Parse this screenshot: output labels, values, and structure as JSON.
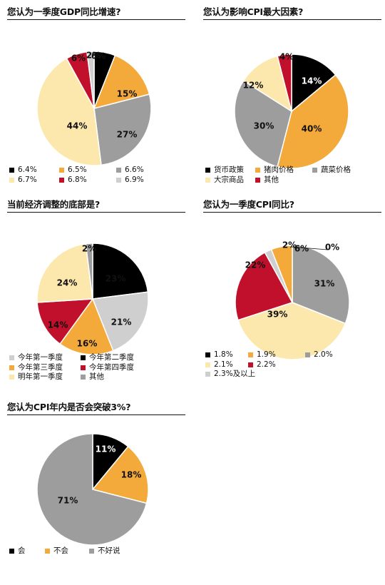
{
  "colors": {
    "black": "#000000",
    "orange": "#f4a93b",
    "gray": "#9d9d9d",
    "lightyellow": "#fce8ad",
    "red": "#c0102b",
    "lightgray": "#cfcfcf"
  },
  "chart_data": [
    {
      "type": "pie",
      "title": "您认为一季度GDP同比增速?",
      "slices": [
        {
          "label": "6.4%",
          "value": 6,
          "display": "6%",
          "color": "black"
        },
        {
          "label": "6.5%",
          "value": 15,
          "display": "15%",
          "color": "orange"
        },
        {
          "label": "6.6%",
          "value": 27,
          "display": "27%",
          "color": "gray"
        },
        {
          "label": "6.7%",
          "value": 44,
          "display": "44%",
          "color": "lightyellow"
        },
        {
          "label": "6.8%",
          "value": 6,
          "display": "6%",
          "color": "red"
        },
        {
          "label": "6.9%",
          "value": 2,
          "display": "2%",
          "color": "lightgray"
        }
      ],
      "legend_rows": [
        [
          0,
          1,
          2
        ],
        [
          3,
          4,
          5
        ]
      ]
    },
    {
      "type": "pie",
      "title": "您认为影响CPI最大因素?",
      "slices": [
        {
          "label": "货币政策",
          "value": 14,
          "display": "14%",
          "color": "black"
        },
        {
          "label": "猪肉价格",
          "value": 40,
          "display": "40%",
          "color": "orange"
        },
        {
          "label": "蔬菜价格",
          "value": 30,
          "display": "30%",
          "color": "gray"
        },
        {
          "label": "大宗商品",
          "value": 12,
          "display": "12%",
          "color": "lightyellow"
        },
        {
          "label": "其他",
          "value": 4,
          "display": "4%",
          "color": "red"
        }
      ],
      "legend_rows": [
        [
          0,
          1,
          2
        ],
        [
          3,
          4
        ]
      ]
    },
    {
      "type": "pie",
      "title": "当前经济调整的底部是?",
      "slices": [
        {
          "label": "今年第二季度",
          "value": 23,
          "display": "23%",
          "color": "black"
        },
        {
          "label": "今年第一季度",
          "value": 21,
          "display": "21%",
          "color": "lightgray"
        },
        {
          "label": "今年第三季度",
          "value": 16,
          "display": "16%",
          "color": "orange"
        },
        {
          "label": "今年第四季度",
          "value": 14,
          "display": "14%",
          "color": "red"
        },
        {
          "label": "明年第一季度",
          "value": 24,
          "display": "24%",
          "color": "lightyellow"
        },
        {
          "label": "其他",
          "value": 2,
          "display": "2%",
          "color": "gray"
        }
      ],
      "legend_rows": [
        [
          1,
          0
        ],
        [
          2,
          3
        ],
        [
          4,
          5
        ]
      ]
    },
    {
      "type": "pie",
      "title": "您认为一季度CPI同比?",
      "slices": [
        {
          "label": "2.0%",
          "value": 31,
          "display": "31%",
          "color": "gray"
        },
        {
          "label": "2.1%",
          "value": 39,
          "display": "39%",
          "color": "lightyellow"
        },
        {
          "label": "2.2%",
          "value": 22,
          "display": "22%",
          "color": "red"
        },
        {
          "label": "2.3%及以上",
          "value": 2,
          "display": "2%",
          "color": "lightgray"
        },
        {
          "label": "1.9%",
          "value": 6,
          "display": "6%",
          "color": "orange"
        },
        {
          "label": "1.8%",
          "value": 0,
          "display": "0%",
          "color": "black"
        }
      ],
      "legend_rows": [
        [
          5,
          4,
          0
        ],
        [
          1,
          2
        ],
        [
          3
        ]
      ]
    },
    {
      "type": "pie",
      "title": "您认为CPI年内是否会突破3%?",
      "slices": [
        {
          "label": "会",
          "value": 11,
          "display": "11%",
          "color": "black"
        },
        {
          "label": "不会",
          "value": 18,
          "display": "18%",
          "color": "orange"
        },
        {
          "label": "不好说",
          "value": 71,
          "display": "71%",
          "color": "gray"
        }
      ],
      "legend_rows": [
        [
          0,
          1,
          2
        ]
      ]
    }
  ]
}
